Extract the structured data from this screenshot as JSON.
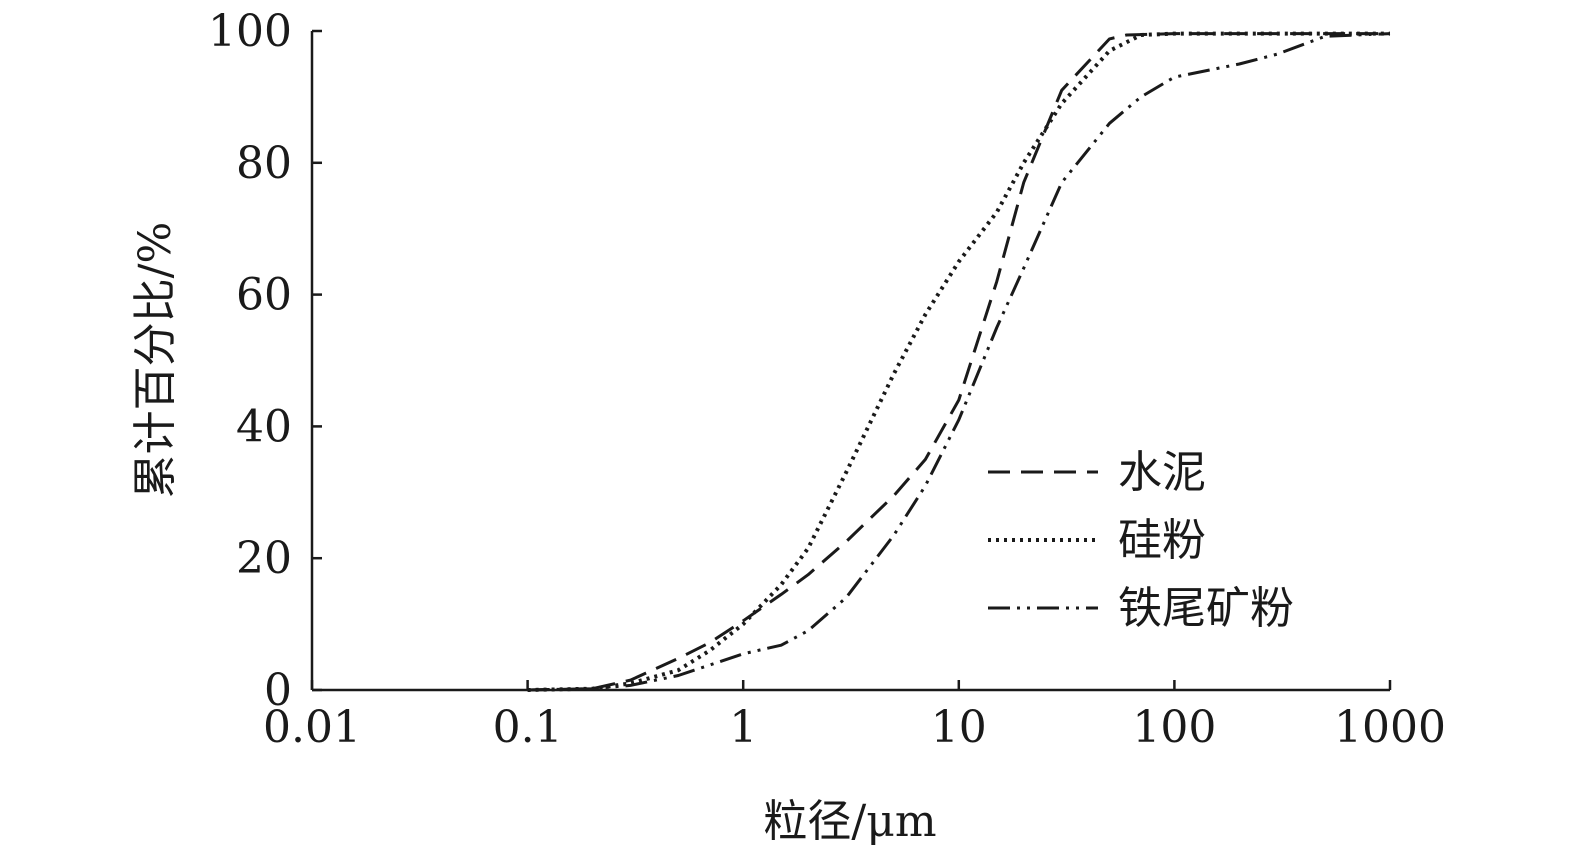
{
  "chart_data": {
    "type": "line",
    "title": "",
    "xlabel": "粒径/μm",
    "ylabel": "累计百分比/%",
    "x_scale": "log",
    "xlim": [
      0.01,
      1000
    ],
    "ylim": [
      0,
      100
    ],
    "x_ticks": [
      0.01,
      0.1,
      1,
      10,
      100,
      1000
    ],
    "x_tick_labels": [
      "0.01",
      "0.1",
      "1",
      "10",
      "100",
      "1000"
    ],
    "y_ticks": [
      0,
      20,
      40,
      60,
      80,
      100
    ],
    "y_tick_labels": [
      "0",
      "20",
      "40",
      "60",
      "80",
      "100"
    ],
    "grid": false,
    "legend_position": "right",
    "series": [
      {
        "name": "水泥",
        "line_style": "dashed",
        "color": "#1a1a1a",
        "x": [
          0.1,
          0.2,
          0.3,
          0.5,
          0.7,
          1,
          1.5,
          2,
          3,
          5,
          7,
          10,
          15,
          20,
          30,
          50,
          60,
          100,
          200,
          500,
          1000
        ],
        "y": [
          0,
          0.2,
          1.5,
          4.8,
          7.2,
          10.5,
          14.5,
          17.5,
          22.5,
          29.5,
          35,
          44,
          62,
          77,
          91,
          98.8,
          99.4,
          99.6,
          99.6,
          99.6,
          99.6
        ]
      },
      {
        "name": "硅粉",
        "line_style": "dotted",
        "color": "#1a1a1a",
        "x": [
          0.1,
          0.2,
          0.3,
          0.5,
          0.7,
          1,
          1.5,
          2,
          3,
          5,
          7,
          10,
          15,
          20,
          30,
          50,
          70,
          100,
          200,
          500,
          1000
        ],
        "y": [
          0,
          0.2,
          1,
          3,
          6,
          10,
          16,
          21.5,
          33,
          48,
          57,
          65,
          72.5,
          80,
          89,
          97,
          99.4,
          99.6,
          99.6,
          99.6,
          99.6
        ]
      },
      {
        "name": "铁尾矿粉",
        "line_style": "dash-dot-dot",
        "color": "#1a1a1a",
        "x": [
          0.1,
          0.2,
          0.3,
          0.5,
          0.7,
          1,
          1.5,
          2,
          3,
          5,
          7,
          10,
          15,
          20,
          30,
          50,
          70,
          100,
          200,
          300,
          500,
          1000
        ],
        "y": [
          0,
          0.2,
          0.7,
          2.2,
          3.8,
          5.5,
          6.8,
          9,
          14,
          23.5,
          31,
          41,
          55,
          64,
          77,
          86,
          90,
          93,
          95,
          96.5,
          99.2,
          99.6
        ]
      }
    ]
  }
}
